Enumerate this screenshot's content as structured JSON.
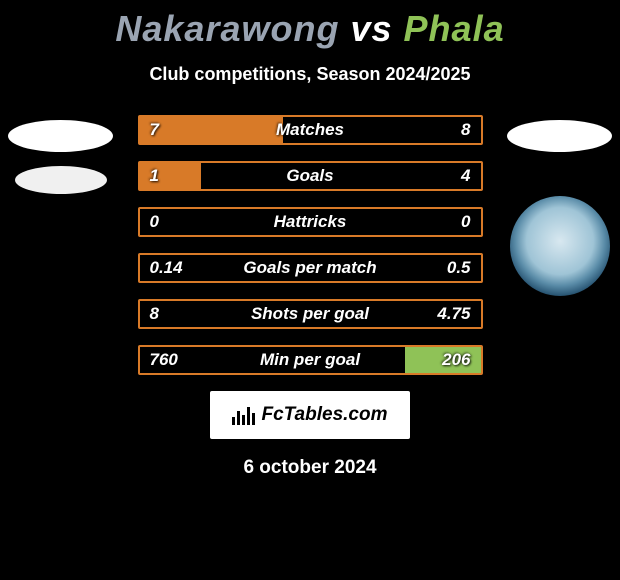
{
  "title_player1": "Nakarawong",
  "title_vs": "vs",
  "title_player2": "Phala",
  "subtitle": "Club competitions, Season 2024/2025",
  "title_color1": "#9aa4b2",
  "title_color2": "#8fc257",
  "date": "6 october 2024",
  "branding_text": "FcTables.com",
  "colors": {
    "left_border": "#d87a28",
    "left_fill": "#d87a28",
    "right_fill": "#8fc257",
    "white": "#ffffff"
  },
  "left_ovals": [
    {
      "bg": "#ffffff"
    },
    {
      "bg": "#f0f0f0"
    }
  ],
  "right_ovals": [
    {
      "bg": "#ffffff"
    }
  ],
  "bars": [
    {
      "label": "Matches",
      "left_val": "7",
      "right_val": "8",
      "left_pct": 42,
      "right_pct": 0
    },
    {
      "label": "Goals",
      "left_val": "1",
      "right_val": "4",
      "left_pct": 18,
      "right_pct": 0
    },
    {
      "label": "Hattricks",
      "left_val": "0",
      "right_val": "0",
      "left_pct": 0,
      "right_pct": 0
    },
    {
      "label": "Goals per match",
      "left_val": "0.14",
      "right_val": "0.5",
      "left_pct": 0,
      "right_pct": 0
    },
    {
      "label": "Shots per goal",
      "left_val": "8",
      "right_val": "4.75",
      "left_pct": 0,
      "right_pct": 0
    },
    {
      "label": "Min per goal",
      "left_val": "760",
      "right_val": "206",
      "left_pct": 0,
      "right_pct": 22
    }
  ]
}
